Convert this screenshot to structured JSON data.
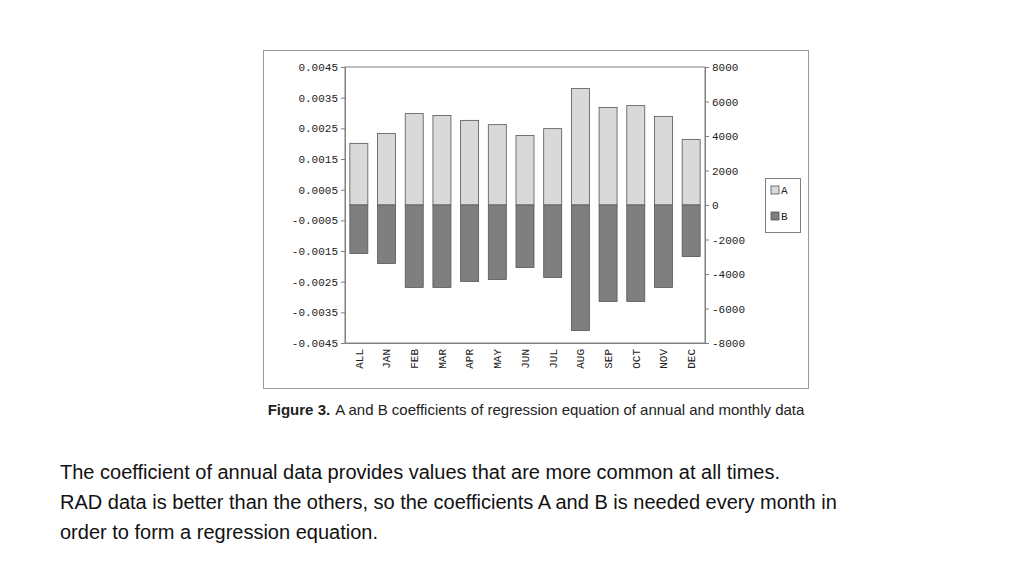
{
  "chart_data": {
    "type": "bar",
    "categories": [
      "ALL",
      "JAN",
      "FEB",
      "MAR",
      "APR",
      "MAY",
      "JUN",
      "JUL",
      "AUG",
      "SEP",
      "OCT",
      "NOV",
      "DEC"
    ],
    "series": [
      {
        "name": "A",
        "color": "#d9d9d9",
        "values": [
          0.00201,
          0.00233,
          0.00298,
          0.00292,
          0.00276,
          0.00262,
          0.00227,
          0.00249,
          0.0038,
          0.00318,
          0.00324,
          0.00289,
          0.00214
        ]
      },
      {
        "name": "B",
        "color": "#7f7f7f",
        "axis": "y2",
        "values": [
          -2810,
          -3390,
          -4780,
          -4780,
          -4430,
          -4320,
          -3620,
          -4200,
          -7280,
          -5590,
          -5590,
          -4780,
          -2990
        ]
      }
    ],
    "ylim": [
      -0.0045,
      0.0045
    ],
    "yticks": [
      0.0045,
      0.0035,
      0.0025,
      0.0015,
      0.0005,
      -0.0005,
      -0.0015,
      -0.0025,
      -0.0035,
      -0.0045
    ],
    "y2lim": [
      -8000,
      8000
    ],
    "y2ticks": [
      8000,
      6000,
      4000,
      2000,
      0,
      -2000,
      -4000,
      -6000,
      -8000
    ],
    "grid": false,
    "legend": "right"
  },
  "figure_label": "Figure 3.",
  "caption": "A and B coefficients of regression equation of annual and monthly data",
  "text_lines": [
    "The coefficient of annual data provides values that are more common at all times.",
    "RAD data is better than the others, so the coefficients A and B is needed every month in",
    "order to form a regression equation."
  ]
}
